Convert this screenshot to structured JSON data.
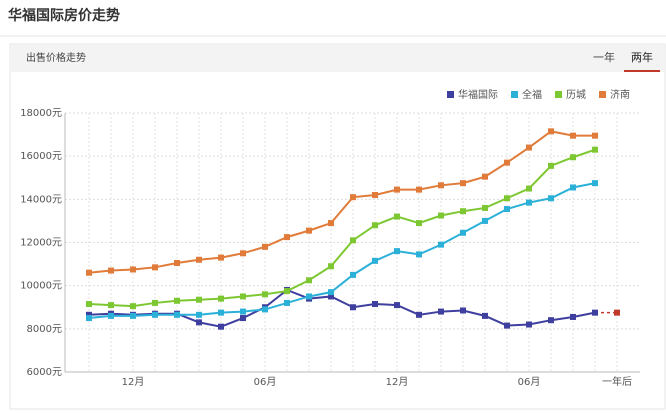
{
  "header": {
    "title": "华福国际房价走势"
  },
  "tabs": {
    "section": "出售价格走势",
    "options": [
      "一年",
      "两年"
    ],
    "active": 1
  },
  "chart_data": {
    "type": "line",
    "categories": [
      null,
      null,
      "12月",
      null,
      null,
      null,
      null,
      null,
      "06月",
      null,
      null,
      null,
      null,
      null,
      "12月",
      null,
      null,
      null,
      null,
      null,
      "06月",
      null,
      null,
      null,
      "一年后"
    ],
    "series": [
      {
        "name": "华福国际",
        "color": "#3f3f9f",
        "dashed_from": 23,
        "values": [
          8650,
          8700,
          8650,
          8700,
          8700,
          8300,
          8100,
          8500,
          9000,
          9800,
          9400,
          9500,
          9000,
          9150,
          9100,
          8650,
          8800,
          8850,
          8600,
          8150,
          8200,
          8400,
          8550,
          8750,
          8750
        ]
      },
      {
        "name": "全福",
        "color": "#2bb0d8",
        "values": [
          8500,
          8600,
          8600,
          8650,
          8650,
          8650,
          8750,
          8800,
          8900,
          9200,
          9500,
          9700,
          10500,
          11150,
          11600,
          11450,
          11900,
          12450,
          13000,
          13550,
          13850,
          14050,
          14550,
          14750,
          null
        ]
      },
      {
        "name": "历城",
        "color": "#7dc832",
        "values": [
          9150,
          9100,
          9050,
          9200,
          9300,
          9350,
          9400,
          9500,
          9600,
          9750,
          10250,
          10900,
          12100,
          12800,
          13200,
          12900,
          13250,
          13450,
          13600,
          14050,
          14500,
          15550,
          15950,
          16300,
          null
        ]
      },
      {
        "name": "济南",
        "color": "#e07b39",
        "values": [
          10600,
          10700,
          10750,
          10850,
          11050,
          11200,
          11300,
          11500,
          11800,
          12250,
          12550,
          12900,
          14100,
          14200,
          14450,
          14450,
          14650,
          14750,
          15050,
          15700,
          16400,
          17150,
          16950,
          16950,
          null
        ]
      }
    ],
    "ylim": [
      6000,
      18000
    ],
    "yticks": [
      {
        "value": 6000,
        "label": "6000元"
      },
      {
        "value": 8000,
        "label": "8000元"
      },
      {
        "value": 10000,
        "label": "10000元"
      },
      {
        "value": 12000,
        "label": "12000元"
      },
      {
        "value": 14000,
        "label": "14000元"
      },
      {
        "value": 16000,
        "label": "16000元"
      },
      {
        "value": 18000,
        "label": "18000元"
      }
    ],
    "grid": true,
    "legend": "top-right"
  }
}
